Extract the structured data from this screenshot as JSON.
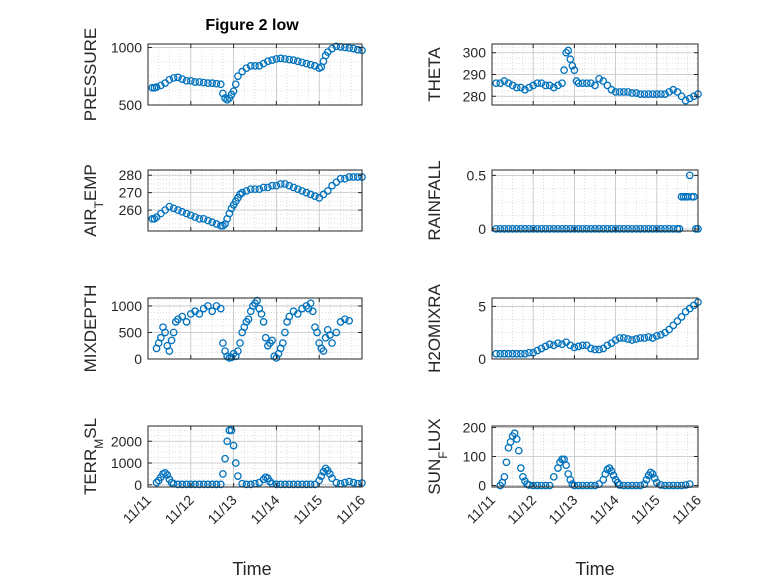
{
  "figure": {
    "title": "Figure 2 low",
    "xlabel": "Time",
    "marker_color": "#0072BD",
    "x_tick_labels": [
      "11/11",
      "11/12",
      "11/13",
      "11/14",
      "11/15",
      "11/16"
    ]
  },
  "chart_data": [
    {
      "type": "scatter",
      "panel": "left-1",
      "ylabel": "PRESSURE",
      "ylim": [
        500,
        1030
      ],
      "yticks": [
        500,
        1000
      ],
      "xlim": [
        0,
        5
      ],
      "grid": true,
      "series": [
        {
          "x": [
            0.1,
            0.15,
            0.2,
            0.3,
            0.4,
            0.5,
            0.6,
            0.7,
            0.8,
            0.9,
            1.0,
            1.1,
            1.2,
            1.3,
            1.4,
            1.5,
            1.6,
            1.7,
            1.75,
            1.8,
            1.85,
            1.9,
            1.95,
            2.0,
            2.05,
            2.1,
            2.2,
            2.3,
            2.4,
            2.5,
            2.6,
            2.7,
            2.8,
            2.9,
            3.0,
            3.1,
            3.2,
            3.3,
            3.4,
            3.5,
            3.6,
            3.7,
            3.8,
            3.9,
            4.0,
            4.05,
            4.1,
            4.15,
            4.2,
            4.3,
            4.4,
            4.5,
            4.6,
            4.7,
            4.8,
            4.9,
            5.0
          ],
          "y": [
            650,
            650,
            655,
            670,
            690,
            720,
            735,
            740,
            725,
            710,
            710,
            700,
            700,
            695,
            690,
            690,
            685,
            680,
            600,
            560,
            545,
            560,
            590,
            620,
            680,
            750,
            790,
            820,
            840,
            840,
            840,
            860,
            880,
            890,
            900,
            905,
            900,
            895,
            890,
            880,
            870,
            860,
            850,
            840,
            820,
            830,
            880,
            930,
            960,
            990,
            1010,
            1005,
            1000,
            995,
            990,
            980,
            975
          ]
        }
      ]
    },
    {
      "type": "scatter",
      "panel": "right-1",
      "ylabel": "THETA",
      "ylim": [
        276,
        304
      ],
      "yticks": [
        280,
        290,
        300
      ],
      "xlim": [
        0,
        5
      ],
      "grid": true,
      "series": [
        {
          "x": [
            0.1,
            0.2,
            0.3,
            0.4,
            0.5,
            0.6,
            0.7,
            0.8,
            0.9,
            1.0,
            1.1,
            1.2,
            1.3,
            1.4,
            1.5,
            1.6,
            1.7,
            1.75,
            1.8,
            1.85,
            1.9,
            1.95,
            2.0,
            2.05,
            2.1,
            2.2,
            2.3,
            2.4,
            2.5,
            2.6,
            2.7,
            2.8,
            2.9,
            3.0,
            3.1,
            3.2,
            3.3,
            3.4,
            3.5,
            3.6,
            3.7,
            3.8,
            3.9,
            4.0,
            4.1,
            4.2,
            4.3,
            4.4,
            4.5,
            4.6,
            4.7,
            4.8,
            4.9,
            5.0
          ],
          "y": [
            286,
            286,
            287,
            286,
            285,
            284,
            284,
            283,
            284,
            285,
            286,
            286,
            285,
            285,
            284,
            285,
            286,
            292,
            300,
            301,
            297,
            294,
            292,
            287,
            286,
            286,
            286,
            286,
            285,
            288,
            287,
            285,
            283,
            282,
            282,
            282,
            282,
            281.5,
            281.5,
            281,
            281,
            281,
            281,
            281,
            281,
            281,
            282,
            283,
            282,
            280,
            278,
            279,
            280,
            281
          ]
        }
      ]
    },
    {
      "type": "scatter",
      "panel": "left-2",
      "ylabel": "AIR_TEMP",
      "ylim": [
        248,
        283
      ],
      "yticks": [
        260,
        270,
        280
      ],
      "xlim": [
        0,
        5
      ],
      "grid": true,
      "series": [
        {
          "x": [
            0.1,
            0.15,
            0.2,
            0.3,
            0.4,
            0.5,
            0.6,
            0.7,
            0.8,
            0.9,
            1.0,
            1.1,
            1.2,
            1.3,
            1.4,
            1.5,
            1.6,
            1.7,
            1.75,
            1.8,
            1.85,
            1.9,
            1.95,
            2.0,
            2.05,
            2.1,
            2.15,
            2.2,
            2.3,
            2.4,
            2.5,
            2.6,
            2.7,
            2.8,
            2.9,
            3.0,
            3.1,
            3.2,
            3.3,
            3.4,
            3.5,
            3.6,
            3.7,
            3.8,
            3.9,
            4.0,
            4.1,
            4.2,
            4.3,
            4.4,
            4.5,
            4.6,
            4.7,
            4.8,
            4.9,
            5.0
          ],
          "y": [
            255,
            255,
            256,
            258,
            260,
            262,
            261,
            260,
            259,
            258,
            257,
            256,
            255,
            255,
            254,
            253,
            252,
            251,
            251,
            252,
            255,
            258,
            261,
            263,
            265,
            267,
            269,
            270,
            271,
            272,
            272,
            272,
            273,
            273,
            274,
            274,
            275,
            275,
            274,
            273,
            272,
            271,
            270,
            269,
            268,
            267,
            269,
            271,
            274,
            276,
            278,
            278,
            279,
            279,
            279,
            279
          ]
        }
      ]
    },
    {
      "type": "scatter",
      "panel": "right-2",
      "ylabel": "RAINFALL",
      "ylim": [
        -0.02,
        0.55
      ],
      "yticks": [
        0,
        0.5
      ],
      "xlim": [
        0,
        5
      ],
      "grid": true,
      "series": [
        {
          "x": [
            0.1,
            0.2,
            0.3,
            0.4,
            0.5,
            0.6,
            0.7,
            0.8,
            0.9,
            1.0,
            1.1,
            1.2,
            1.3,
            1.4,
            1.5,
            1.6,
            1.7,
            1.8,
            1.9,
            2.0,
            2.1,
            2.2,
            2.3,
            2.4,
            2.5,
            2.6,
            2.7,
            2.8,
            2.9,
            3.0,
            3.1,
            3.2,
            3.3,
            3.4,
            3.5,
            3.6,
            3.7,
            3.8,
            3.9,
            4.0,
            4.1,
            4.2,
            4.3,
            4.4,
            4.5,
            4.55,
            4.6,
            4.65,
            4.7,
            4.75,
            4.8,
            4.85,
            4.9,
            4.95,
            5.0
          ],
          "y": [
            0,
            0,
            0,
            0,
            0,
            0,
            0,
            0,
            0,
            0,
            0,
            0,
            0,
            0,
            0,
            0,
            0,
            0,
            0,
            0,
            0,
            0,
            0,
            0,
            0,
            0,
            0,
            0,
            0,
            0,
            0,
            0,
            0,
            0,
            0,
            0,
            0,
            0,
            0,
            0,
            0,
            0,
            0,
            0,
            0,
            0,
            0.3,
            0.3,
            0.3,
            0.3,
            0.5,
            0.3,
            0.3,
            0,
            0
          ]
        }
      ]
    },
    {
      "type": "scatter",
      "panel": "left-3",
      "ylabel": "MIXDEPTH",
      "ylim": [
        0,
        1150
      ],
      "yticks": [
        0,
        500,
        1000
      ],
      "xlim": [
        0,
        5
      ],
      "grid": true,
      "series": [
        {
          "x": [
            0.2,
            0.25,
            0.3,
            0.35,
            0.4,
            0.45,
            0.5,
            0.55,
            0.6,
            0.65,
            0.7,
            0.8,
            0.9,
            1.0,
            1.1,
            1.2,
            1.3,
            1.4,
            1.5,
            1.6,
            1.7,
            1.75,
            1.8,
            1.85,
            1.9,
            1.95,
            2.0,
            2.05,
            2.1,
            2.15,
            2.2,
            2.25,
            2.3,
            2.35,
            2.4,
            2.45,
            2.5,
            2.55,
            2.6,
            2.65,
            2.7,
            2.75,
            2.8,
            2.85,
            2.9,
            2.95,
            3.0,
            3.05,
            3.1,
            3.15,
            3.2,
            3.25,
            3.3,
            3.4,
            3.5,
            3.6,
            3.7,
            3.75,
            3.8,
            3.85,
            3.9,
            3.95,
            4.0,
            4.05,
            4.1,
            4.15,
            4.2,
            4.25,
            4.3,
            4.4,
            4.5,
            4.6,
            4.7
          ],
          "y": [
            200,
            300,
            400,
            600,
            500,
            250,
            150,
            350,
            500,
            700,
            750,
            800,
            700,
            850,
            900,
            850,
            950,
            1000,
            900,
            1000,
            950,
            300,
            150,
            50,
            20,
            30,
            100,
            50,
            150,
            300,
            500,
            600,
            700,
            750,
            900,
            1000,
            1050,
            1100,
            950,
            850,
            700,
            400,
            250,
            300,
            350,
            50,
            20,
            100,
            200,
            300,
            500,
            700,
            800,
            900,
            850,
            950,
            1000,
            950,
            1050,
            900,
            600,
            500,
            300,
            200,
            150,
            400,
            550,
            450,
            300,
            500,
            700,
            750,
            720
          ]
        }
      ]
    },
    {
      "type": "scatter",
      "panel": "right-3",
      "ylabel": "H2OMIXRA",
      "ylim": [
        0,
        5.8
      ],
      "yticks": [
        0,
        5
      ],
      "xlim": [
        0,
        5
      ],
      "grid": true,
      "series": [
        {
          "x": [
            0.1,
            0.2,
            0.3,
            0.4,
            0.5,
            0.6,
            0.7,
            0.8,
            0.9,
            1.0,
            1.1,
            1.2,
            1.3,
            1.4,
            1.5,
            1.6,
            1.7,
            1.8,
            1.9,
            2.0,
            2.1,
            2.2,
            2.3,
            2.4,
            2.5,
            2.6,
            2.7,
            2.8,
            2.9,
            3.0,
            3.1,
            3.2,
            3.3,
            3.4,
            3.5,
            3.6,
            3.7,
            3.8,
            3.9,
            4.0,
            4.1,
            4.2,
            4.3,
            4.4,
            4.5,
            4.6,
            4.7,
            4.8,
            4.9,
            5.0
          ],
          "y": [
            0.5,
            0.5,
            0.5,
            0.5,
            0.5,
            0.5,
            0.5,
            0.5,
            0.6,
            0.6,
            0.8,
            1.0,
            1.2,
            1.4,
            1.3,
            1.5,
            1.4,
            1.6,
            1.3,
            1.1,
            1.2,
            1.3,
            1.3,
            1.0,
            0.9,
            0.9,
            1.0,
            1.3,
            1.5,
            1.8,
            2.0,
            2.0,
            1.9,
            1.8,
            1.9,
            2.0,
            2.0,
            2.1,
            2.0,
            2.2,
            2.3,
            2.5,
            2.8,
            3.2,
            3.6,
            4.0,
            4.5,
            4.8,
            5.1,
            5.4
          ]
        }
      ]
    },
    {
      "type": "scatter",
      "panel": "left-4",
      "ylabel": "TERR_MSL",
      "ylim": [
        -100,
        2700
      ],
      "yticks": [
        0,
        1000,
        2000
      ],
      "xlim": [
        0,
        5
      ],
      "grid": true,
      "series": [
        {
          "x": [
            0.2,
            0.25,
            0.3,
            0.35,
            0.4,
            0.45,
            0.5,
            0.55,
            0.6,
            0.7,
            0.8,
            0.9,
            1.0,
            1.1,
            1.2,
            1.3,
            1.4,
            1.5,
            1.6,
            1.7,
            1.75,
            1.8,
            1.85,
            1.9,
            1.95,
            2.0,
            2.05,
            2.1,
            2.2,
            2.3,
            2.4,
            2.5,
            2.6,
            2.7,
            2.75,
            2.8,
            2.85,
            2.9,
            3.0,
            3.1,
            3.2,
            3.3,
            3.4,
            3.5,
            3.6,
            3.7,
            3.8,
            3.9,
            4.0,
            4.05,
            4.1,
            4.15,
            4.2,
            4.25,
            4.3,
            4.4,
            4.5,
            4.6,
            4.7,
            4.8,
            4.9,
            5.0
          ],
          "y": [
            100,
            200,
            350,
            500,
            550,
            450,
            250,
            100,
            50,
            20,
            20,
            20,
            20,
            20,
            20,
            20,
            20,
            20,
            20,
            20,
            500,
            1200,
            2000,
            2500,
            2500,
            1800,
            1000,
            400,
            50,
            20,
            20,
            50,
            100,
            250,
            350,
            300,
            150,
            50,
            20,
            20,
            20,
            20,
            20,
            20,
            20,
            20,
            20,
            20,
            200,
            400,
            600,
            750,
            650,
            500,
            300,
            100,
            50,
            100,
            150,
            100,
            50,
            80
          ]
        }
      ]
    },
    {
      "type": "scatter",
      "panel": "right-4",
      "ylabel": "SUN_FLUX",
      "ylim": [
        -5,
        205
      ],
      "yticks": [
        0,
        100,
        200
      ],
      "xlim": [
        0,
        5
      ],
      "grid": true,
      "series": [
        {
          "x": [
            0.2,
            0.25,
            0.3,
            0.35,
            0.4,
            0.45,
            0.5,
            0.55,
            0.6,
            0.65,
            0.7,
            0.75,
            0.8,
            0.85,
            0.9,
            1.0,
            1.1,
            1.2,
            1.3,
            1.4,
            1.5,
            1.6,
            1.65,
            1.7,
            1.75,
            1.8,
            1.85,
            1.9,
            1.95,
            2.0,
            2.1,
            2.2,
            2.3,
            2.4,
            2.5,
            2.6,
            2.7,
            2.75,
            2.8,
            2.85,
            2.9,
            2.95,
            3.0,
            3.05,
            3.1,
            3.2,
            3.3,
            3.4,
            3.5,
            3.6,
            3.7,
            3.75,
            3.8,
            3.85,
            3.9,
            3.95,
            4.0,
            4.1,
            4.2,
            4.3,
            4.4,
            4.5,
            4.6,
            4.7,
            4.8
          ],
          "y": [
            0,
            10,
            30,
            80,
            130,
            150,
            170,
            180,
            160,
            120,
            60,
            30,
            15,
            5,
            2,
            0,
            0,
            0,
            0,
            0,
            30,
            60,
            80,
            90,
            90,
            70,
            40,
            20,
            5,
            0,
            0,
            0,
            0,
            0,
            0,
            5,
            20,
            40,
            55,
            60,
            50,
            35,
            20,
            10,
            2,
            0,
            0,
            0,
            0,
            0,
            5,
            20,
            35,
            45,
            40,
            25,
            10,
            2,
            0,
            0,
            0,
            0,
            0,
            2,
            5
          ]
        }
      ]
    }
  ]
}
